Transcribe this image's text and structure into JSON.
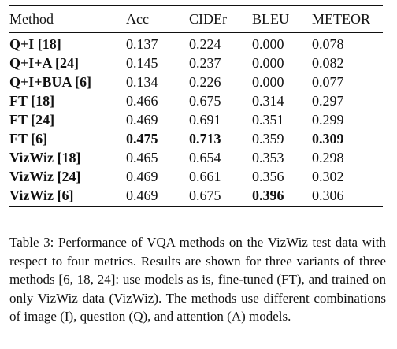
{
  "table": {
    "headers": [
      "Method",
      "Acc",
      "CIDEr",
      "BLEU",
      "METEOR"
    ],
    "rows": [
      {
        "method": "Q+I [18]",
        "acc": "0.137",
        "cider": "0.224",
        "bleu": "0.000",
        "meteor": "0.078",
        "bold": []
      },
      {
        "method": "Q+I+A [24]",
        "acc": "0.145",
        "cider": "0.237",
        "bleu": "0.000",
        "meteor": "0.082",
        "bold": []
      },
      {
        "method": "Q+I+BUA [6]",
        "acc": "0.134",
        "cider": "0.226",
        "bleu": "0.000",
        "meteor": "0.077",
        "bold": []
      },
      {
        "method": "FT [18]",
        "acc": "0.466",
        "cider": "0.675",
        "bleu": "0.314",
        "meteor": "0.297",
        "bold": []
      },
      {
        "method": "FT [24]",
        "acc": "0.469",
        "cider": "0.691",
        "bleu": "0.351",
        "meteor": "0.299",
        "bold": []
      },
      {
        "method": "FT [6]",
        "acc": "0.475",
        "cider": "0.713",
        "bleu": "0.359",
        "meteor": "0.309",
        "bold": [
          "acc",
          "cider",
          "meteor"
        ]
      },
      {
        "method": "VizWiz [18]",
        "acc": "0.465",
        "cider": "0.654",
        "bleu": "0.353",
        "meteor": "0.298",
        "bold": []
      },
      {
        "method": "VizWiz [24]",
        "acc": "0.469",
        "cider": "0.661",
        "bleu": "0.356",
        "meteor": "0.302",
        "bold": []
      },
      {
        "method": "VizWiz [6]",
        "acc": "0.469",
        "cider": "0.675",
        "bleu": "0.396",
        "meteor": "0.306",
        "bold": [
          "bleu"
        ]
      }
    ]
  },
  "caption": "Table 3: Performance of VQA methods on the VizWiz test data with respect to four metrics.  Results are shown for three variants of three methods [6, 18, 24]: use models as is, fine-tuned (FT), and trained on only VizWiz data (VizWiz). The methods use different combinations of image (I), question (Q), and attention (A) models."
}
